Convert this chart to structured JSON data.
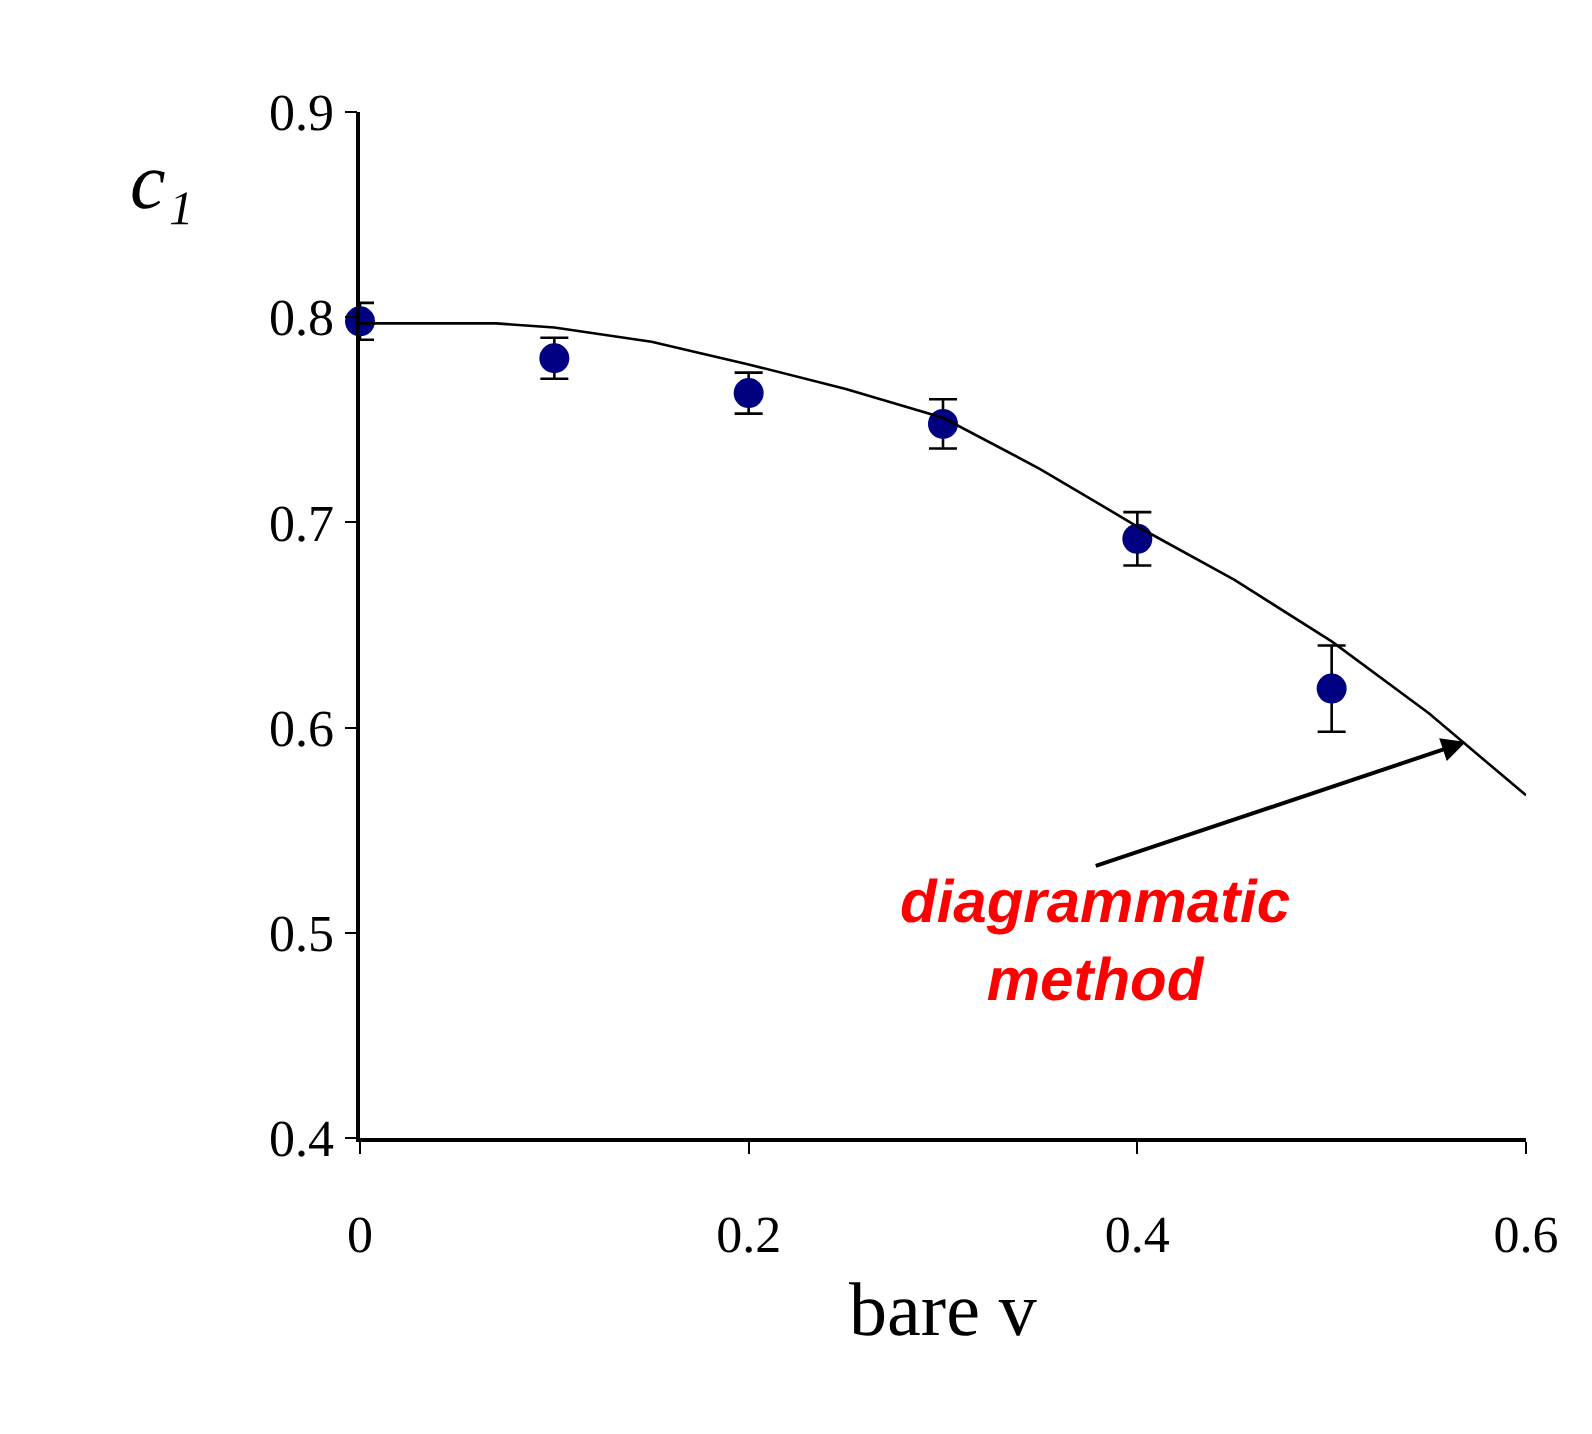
{
  "chart_data": {
    "type": "scatter",
    "xlabel": "bare v",
    "ylabel": "c₁",
    "xlim": [
      0,
      0.6
    ],
    "xticks": [
      0,
      0.2,
      0.4,
      0.6
    ],
    "ylim": [
      0.4,
      0.9
    ],
    "yticks": [
      0.4,
      0.5,
      0.6,
      0.7,
      0.8,
      0.9
    ],
    "series": [
      {
        "marker": "circle",
        "color": "#000080",
        "x": [
          0,
          0.1,
          0.2,
          0.3,
          0.4,
          0.5
        ],
        "values": [
          0.798,
          0.78,
          0.763,
          0.748,
          0.692,
          0.619
        ],
        "errors": [
          0.009,
          0.01,
          0.01,
          0.012,
          0.013,
          0.021
        ]
      },
      {
        "type": "line",
        "marker": "none",
        "line_style": "solid",
        "color": "#000000",
        "x": [
          0,
          0.05,
          0.07,
          0.1,
          0.15,
          0.2,
          0.25,
          0.3,
          0.35,
          0.4,
          0.45,
          0.5,
          0.55,
          0.6
        ],
        "values": [
          0.797,
          0.797,
          0.797,
          0.795,
          0.788,
          0.777,
          0.765,
          0.751,
          0.726,
          0.698,
          0.672,
          0.642,
          0.607,
          0.567
        ]
      }
    ],
    "annotations": [
      {
        "text": "diagrammatic\nmethod",
        "x": 0.569,
        "y": 0.593
      }
    ]
  }
}
